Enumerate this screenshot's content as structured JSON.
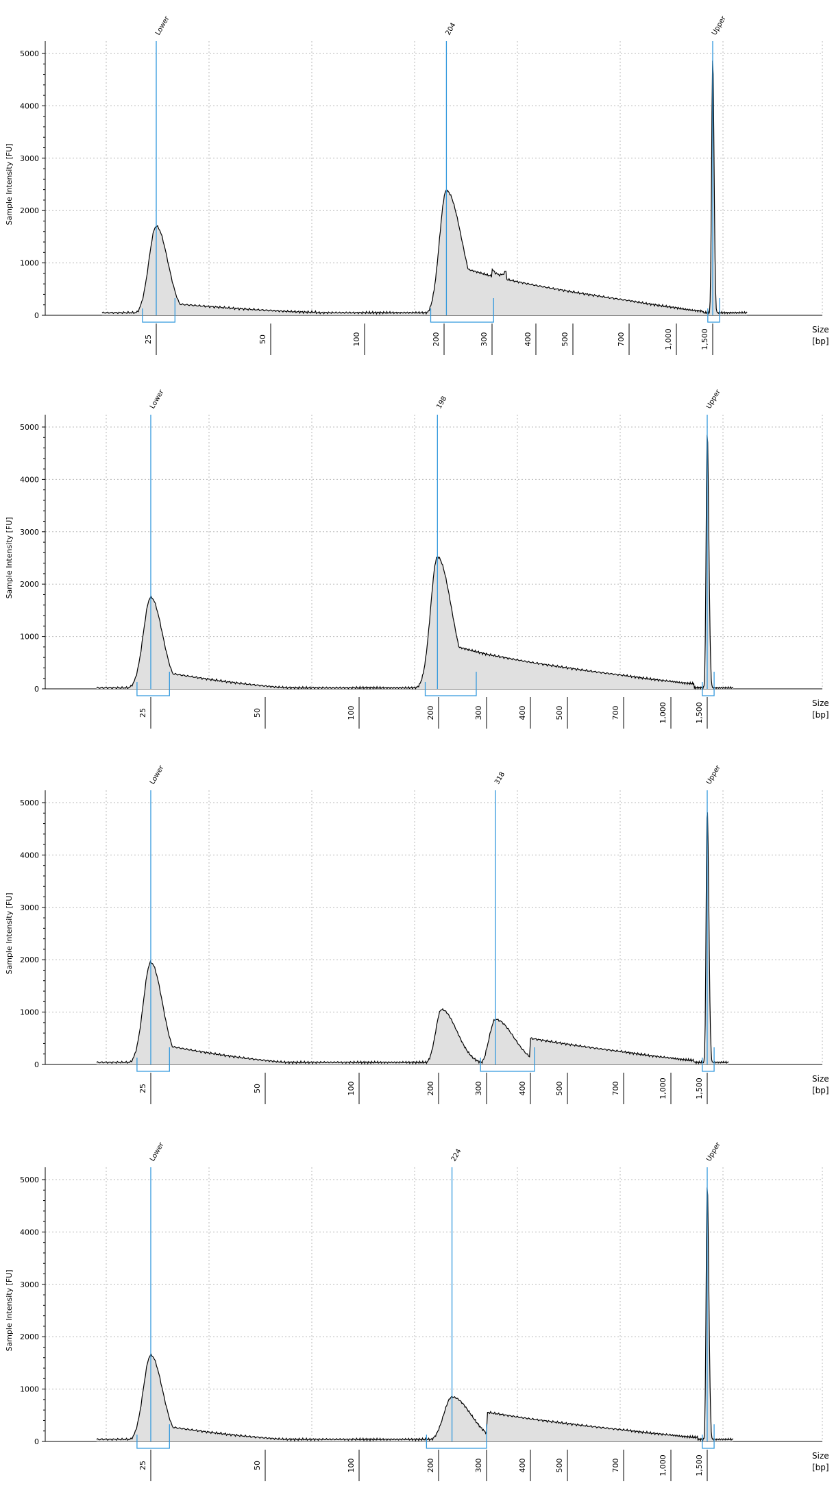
{
  "colors": {
    "trace": "#000000",
    "fill": "#e0e0e0",
    "marker": "#3399dd",
    "grid": "#b8b8b8",
    "axis": "#000000"
  },
  "chart_data": [
    {
      "type": "line",
      "ylabel": "Sample Intensity [FU]",
      "xlabel_line1": "Size",
      "xlabel_line2": "[bp]",
      "ylim": [
        0,
        5000
      ],
      "yticks": [
        "0",
        "1000",
        "2000",
        "3000",
        "4000",
        "5000"
      ],
      "sizes": [
        "25",
        "50",
        "100",
        "200",
        "300",
        "400",
        "500",
        "700",
        "1,000",
        "1,500"
      ],
      "markers": [
        {
          "label": "Lower",
          "size": 25,
          "peak": 1700,
          "range": [
            23,
            28
          ]
        },
        {
          "label": "204",
          "size": 204,
          "peak": 2380,
          "range": [
            178,
            303
          ]
        },
        {
          "label": "Upper",
          "size": 1500,
          "peak": 4900,
          "range": [
            1420,
            1620
          ]
        }
      ],
      "peaks": [
        {
          "size": 25,
          "height": 1700,
          "left": 0.045,
          "right": 0.07
        },
        {
          "size": 204,
          "height": 2380,
          "left": 0.06,
          "right": 0.13
        },
        {
          "size": 1500,
          "height": 4900,
          "left": 0.012,
          "right": 0.015
        }
      ],
      "shelves": [
        {
          "from": 28,
          "to": 70,
          "value": 220,
          "value_end": 60
        },
        {
          "from": 205,
          "to": 1350,
          "value": 1000,
          "value_end": 80
        },
        {
          "from": 300,
          "to": 330,
          "value": 880,
          "value_end": 880
        }
      ],
      "baseline": 50,
      "range_bp": [
        18,
        2200
      ]
    },
    {
      "type": "line",
      "ylabel": "Sample Intensity [FU]",
      "xlabel_line1": "Size",
      "xlabel_line2": "[bp]",
      "ylim": [
        0,
        5000
      ],
      "yticks": [
        "0",
        "1000",
        "2000",
        "3000",
        "4000",
        "5000"
      ],
      "sizes": [
        "25",
        "50",
        "100",
        "200",
        "300",
        "400",
        "500",
        "700",
        "1,000",
        "1,500"
      ],
      "markers": [
        {
          "label": "Lower",
          "size": 25,
          "peak": 1750,
          "range": [
            23,
            28
          ]
        },
        {
          "label": "198",
          "size": 198,
          "peak": 2520,
          "range": [
            178,
            275
          ]
        },
        {
          "label": "Upper",
          "size": 1500,
          "peak": 4900,
          "range": [
            1420,
            1620
          ]
        }
      ],
      "peaks": [
        {
          "size": 25,
          "height": 1750,
          "left": 0.045,
          "right": 0.07
        },
        {
          "size": 198,
          "height": 2520,
          "left": 0.06,
          "right": 0.12
        },
        {
          "size": 1500,
          "height": 4900,
          "left": 0.012,
          "right": 0.018
        }
      ],
      "shelves": [
        {
          "from": 28,
          "to": 60,
          "value": 300,
          "value_end": 20
        },
        {
          "from": 200,
          "to": 1300,
          "value": 900,
          "value_end": 100
        }
      ],
      "baseline": 20,
      "range_bp": [
        18,
        2000
      ]
    },
    {
      "type": "line",
      "ylabel": "Sample Intensity [FU]",
      "xlabel_line1": "Size",
      "xlabel_line2": "[bp]",
      "ylim": [
        0,
        5000
      ],
      "yticks": [
        "0",
        "1000",
        "2000",
        "3000",
        "4000",
        "5000"
      ],
      "sizes": [
        "25",
        "50",
        "100",
        "200",
        "300",
        "400",
        "500",
        "700",
        "1,000",
        "1,500"
      ],
      "markers": [
        {
          "label": "Lower",
          "size": 25,
          "peak": 1950,
          "range": [
            23,
            28
          ]
        },
        {
          "label": "318",
          "size": 318,
          "peak": 880,
          "range": [
            285,
            410
          ]
        },
        {
          "label": "Upper",
          "size": 1500,
          "peak": 4900,
          "range": [
            1420,
            1620
          ]
        }
      ],
      "peaks": [
        {
          "size": 25,
          "height": 1950,
          "left": 0.045,
          "right": 0.07
        },
        {
          "size": 205,
          "height": 1050,
          "left": 0.05,
          "right": 0.13
        },
        {
          "size": 318,
          "height": 860,
          "left": 0.04,
          "right": 0.12
        },
        {
          "size": 1500,
          "height": 4900,
          "left": 0.012,
          "right": 0.018
        }
      ],
      "shelves": [
        {
          "from": 28,
          "to": 60,
          "value": 350,
          "value_end": 40
        },
        {
          "from": 400,
          "to": 1300,
          "value": 500,
          "value_end": 80
        }
      ],
      "baseline": 40,
      "range_bp": [
        18,
        1900
      ]
    },
    {
      "type": "line",
      "ylabel": "Sample Intensity [FU]",
      "xlabel_line1": "Size",
      "xlabel_line2": "[bp]",
      "ylim": [
        0,
        5000
      ],
      "yticks": [
        "0",
        "1000",
        "2000",
        "3000",
        "4000",
        "5000"
      ],
      "sizes": [
        "25",
        "50",
        "100",
        "200",
        "300",
        "400",
        "500",
        "700",
        "1,000",
        "1,500"
      ],
      "markers": [
        {
          "label": "Lower",
          "size": 25,
          "peak": 1650,
          "range": [
            23,
            28
          ]
        },
        {
          "label": "224",
          "size": 224,
          "peak": 850,
          "range": [
            180,
            300
          ]
        },
        {
          "label": "Upper",
          "size": 1500,
          "peak": 4900,
          "range": [
            1420,
            1620
          ]
        }
      ],
      "peaks": [
        {
          "size": 25,
          "height": 1650,
          "left": 0.045,
          "right": 0.07
        },
        {
          "size": 224,
          "height": 850,
          "left": 0.07,
          "right": 0.16
        },
        {
          "size": 1500,
          "height": 4900,
          "left": 0.012,
          "right": 0.018
        }
      ],
      "shelves": [
        {
          "from": 28,
          "to": 60,
          "value": 280,
          "value_end": 40
        },
        {
          "from": 300,
          "to": 1350,
          "value": 560,
          "value_end": 80
        }
      ],
      "baseline": 40,
      "range_bp": [
        18,
        2000
      ]
    }
  ]
}
